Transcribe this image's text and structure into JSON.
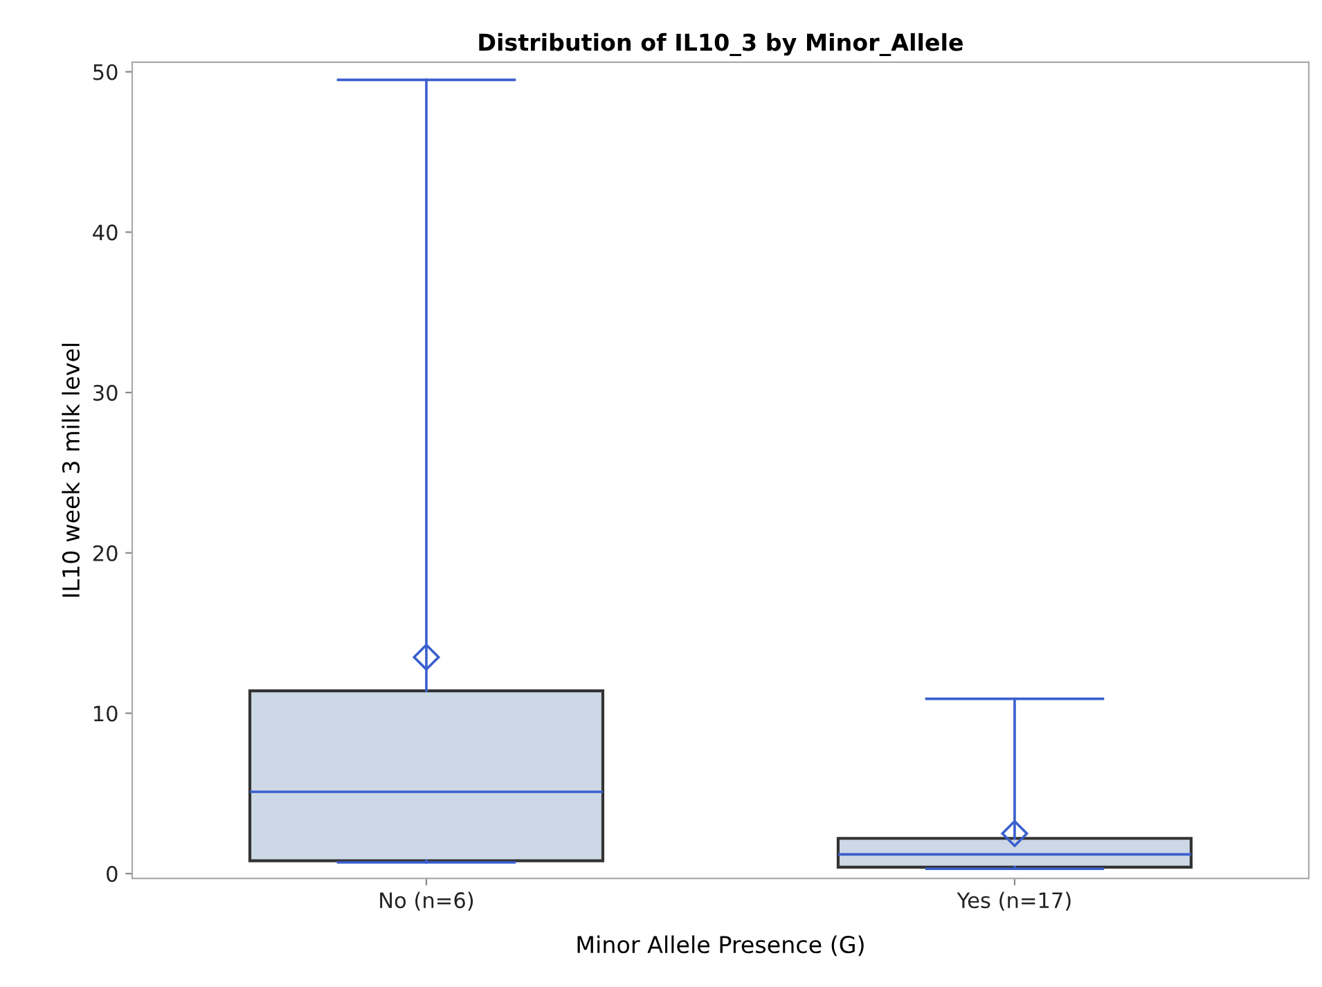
{
  "chart_data": {
    "type": "box",
    "title": "Distribution of IL10_3 by Minor_Allele",
    "xlabel": "Minor Allele Presence (G)",
    "ylabel": "IL10 week 3 milk level",
    "categories": [
      "No (n=6)",
      "Yes (n=17)"
    ],
    "boxes": [
      {
        "low": 0.7,
        "q1": 0.8,
        "median": 5.1,
        "q3": 11.4,
        "high": 49.5,
        "mean": 13.5
      },
      {
        "low": 0.3,
        "q1": 0.4,
        "median": 1.2,
        "q3": 2.2,
        "high": 10.9,
        "mean": 2.5
      }
    ],
    "color": "#cdd8e6",
    "ylim": [
      -0.3,
      50.6
    ],
    "yticks": [
      0,
      10,
      20,
      30,
      40,
      50
    ],
    "grid": false,
    "legend": false
  }
}
